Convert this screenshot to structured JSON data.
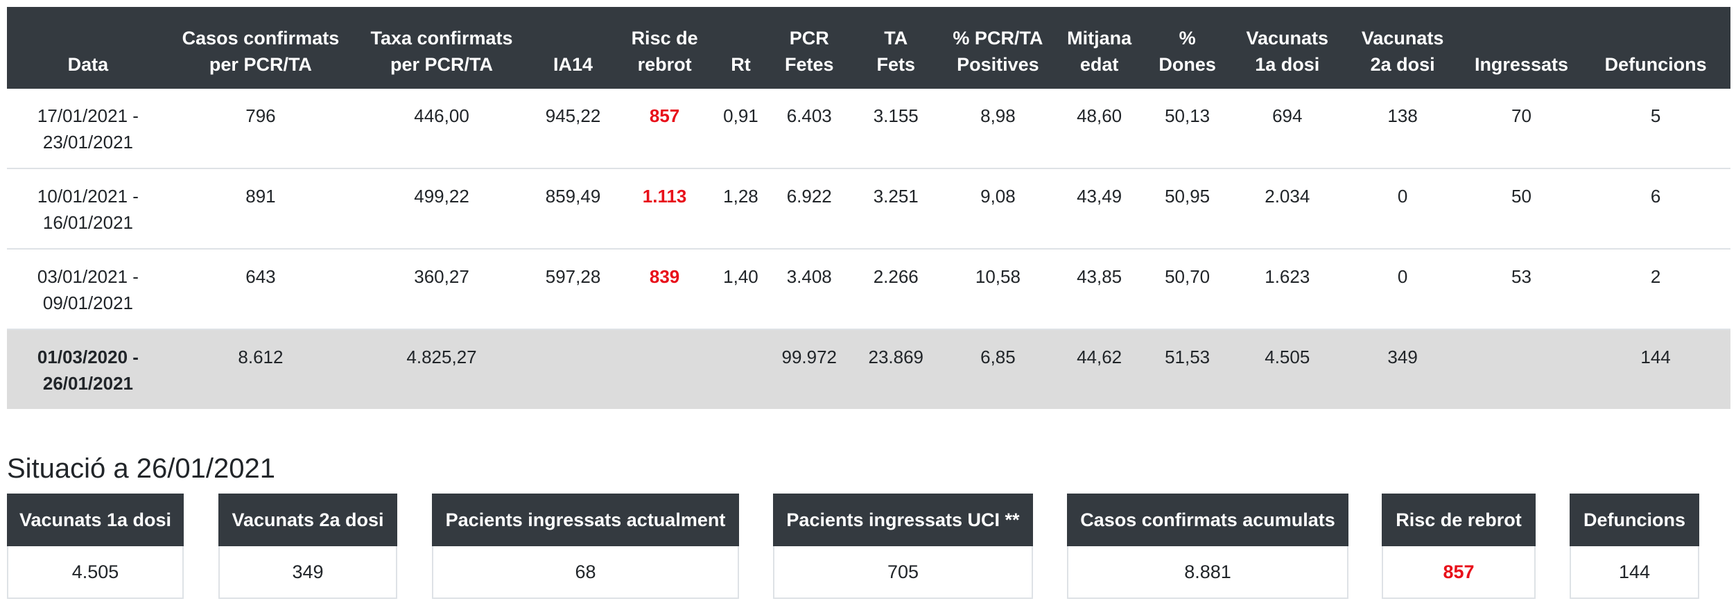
{
  "weekly_table": {
    "headers": [
      "Data",
      "Casos confirmats\nper PCR/TA",
      "Taxa confirmats\nper PCR/TA",
      "IA14",
      "Risc de\nrebrot",
      "Rt",
      "PCR\nFetes",
      "TA\nFets",
      "% PCR/TA\nPositives",
      "Mitjana\nedat",
      "%\nDones",
      "Vacunats\n1a dosi",
      "Vacunats\n2a dosi",
      "Ingressats",
      "Defuncions"
    ],
    "rows": [
      [
        "17/01/2021 -\n23/01/2021",
        "796",
        "446,00",
        "945,22",
        "857",
        "0,91",
        "6.403",
        "3.155",
        "8,98",
        "48,60",
        "50,13",
        "694",
        "138",
        "70",
        "5"
      ],
      [
        "10/01/2021 -\n16/01/2021",
        "891",
        "499,22",
        "859,49",
        "1.113",
        "1,28",
        "6.922",
        "3.251",
        "9,08",
        "43,49",
        "50,95",
        "2.034",
        "0",
        "50",
        "6"
      ],
      [
        "03/01/2021 -\n09/01/2021",
        "643",
        "360,27",
        "597,28",
        "839",
        "1,40",
        "3.408",
        "2.266",
        "10,58",
        "43,85",
        "50,70",
        "1.623",
        "0",
        "53",
        "2"
      ]
    ],
    "total_row": [
      "01/03/2020 -\n26/01/2021",
      "8.612",
      "4.825,27",
      "",
      "",
      "",
      "99.972",
      "23.869",
      "6,85",
      "44,62",
      "51,53",
      "4.505",
      "349",
      "",
      "144"
    ]
  },
  "situacio": {
    "title": "Situació a 26/01/2021",
    "cards": [
      {
        "label": "Vacunats 1a dosi",
        "value": "4.505"
      },
      {
        "label": "Vacunats 2a dosi",
        "value": "349"
      },
      {
        "label": "Pacients ingressats actualment",
        "value": "68"
      },
      {
        "label": "Pacients ingressats UCI **",
        "value": "705"
      },
      {
        "label": "Casos confirmats acumulats",
        "value": "8.881"
      },
      {
        "label": "Risc de rebrot",
        "value": "857"
      },
      {
        "label": "Defuncions",
        "value": "144"
      }
    ]
  },
  "colors": {
    "header_bg": "#343a40",
    "alert_red": "#e8101a",
    "total_row_bg": "#dcdcdc"
  }
}
